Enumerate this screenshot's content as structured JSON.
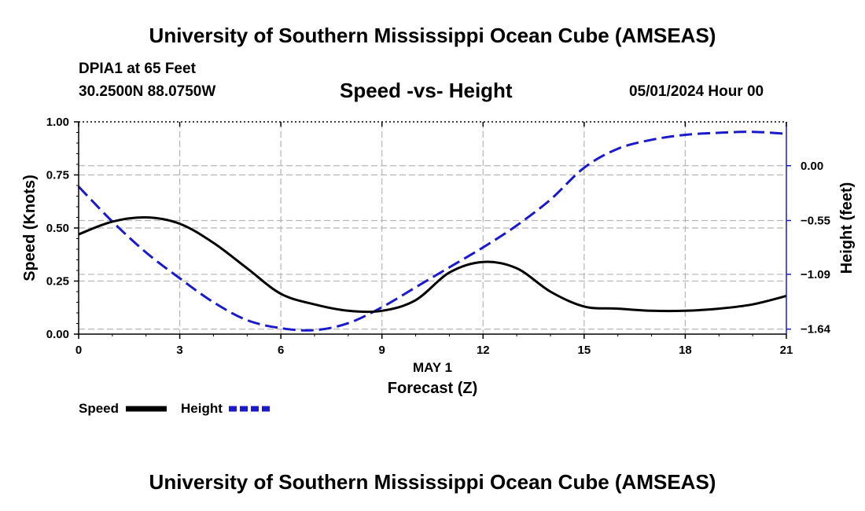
{
  "header": {
    "title": "University of Southern Mississippi Ocean Cube (AMSEAS)",
    "station": "DPIA1 at 65 Feet",
    "location": "30.2500N  88.0750W",
    "subtitle": "Speed -vs- Height",
    "datetime": "05/01/2024 Hour 00"
  },
  "footer": {
    "title": "University of Southern Mississippi Ocean Cube (AMSEAS)"
  },
  "colors": {
    "speed": "#000000",
    "height": "#1a1acc",
    "grid": "#b5b5b5"
  },
  "chart_data": {
    "type": "line",
    "title": "Speed -vs- Height",
    "xlabel": "Forecast (Z)",
    "xlabel_date": "MAY 1",
    "ylabel": "Speed (Knots)",
    "y2label": "Height (feet)",
    "xlim": [
      0,
      21
    ],
    "ylim": [
      0,
      1
    ],
    "y2lim": [
      -1.69,
      0.44
    ],
    "x_ticks": [
      0,
      3,
      6,
      9,
      12,
      15,
      18,
      21
    ],
    "x_tick_labels": [
      "0",
      "3",
      "6",
      "9",
      "12",
      "15",
      "18",
      "21"
    ],
    "y_ticks": [
      0,
      0.25,
      0.5,
      0.75,
      1.0
    ],
    "y_tick_labels": [
      "0.00",
      "0.25",
      "0.50",
      "0.75",
      "1.00"
    ],
    "y2_ticks": [
      0.0,
      -0.55,
      -1.09,
      -1.64
    ],
    "y2_tick_labels": [
      "0.00",
      "−0.55",
      "−1.09",
      "−1.64"
    ],
    "grid": true,
    "legend_position": "bottom-left",
    "series": [
      {
        "name": "Speed",
        "axis": "left",
        "style": "solid",
        "x": [
          0,
          1,
          2,
          3,
          4,
          5,
          6,
          7,
          8,
          9,
          10,
          11,
          12,
          13,
          14,
          15,
          16,
          17,
          18,
          19,
          20,
          21
        ],
        "values": [
          0.47,
          0.53,
          0.55,
          0.52,
          0.43,
          0.31,
          0.19,
          0.14,
          0.11,
          0.11,
          0.16,
          0.29,
          0.34,
          0.31,
          0.2,
          0.13,
          0.12,
          0.11,
          0.11,
          0.12,
          0.14,
          0.18
        ]
      },
      {
        "name": "Height",
        "axis": "right",
        "style": "dashed",
        "x": [
          0,
          1,
          2,
          3,
          4,
          5,
          6,
          7,
          8,
          9,
          10,
          11,
          12,
          13,
          14,
          15,
          16,
          17,
          18,
          19,
          20,
          21
        ],
        "values": [
          -0.21,
          -0.56,
          -0.87,
          -1.13,
          -1.37,
          -1.55,
          -1.63,
          -1.65,
          -1.58,
          -1.42,
          -1.22,
          -1.02,
          -0.82,
          -0.6,
          -0.34,
          -0.02,
          0.17,
          0.26,
          0.31,
          0.33,
          0.34,
          0.32
        ]
      }
    ],
    "legend": [
      {
        "label": "Speed",
        "series": 0
      },
      {
        "label": "Height",
        "series": 1
      }
    ]
  }
}
